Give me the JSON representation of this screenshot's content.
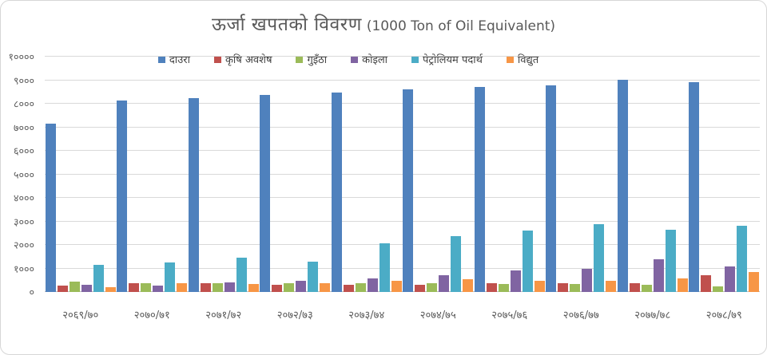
{
  "title": {
    "main": "ऊर्जा खपतको विवरण",
    "sub": "(1000 Ton of Oil Equivalent)"
  },
  "colors": {
    "title_text": "#595959",
    "axis_text": "#595959",
    "legend_text": "#404040",
    "gridline": "#d9d9d9",
    "axis_line": "#bfbfbf",
    "series_blue": "#4F81BD",
    "series_red": "#C0504D",
    "series_green": "#9BBB59",
    "series_purple": "#8064A2",
    "series_teal": "#4BACC6",
    "series_orange": "#F79646"
  },
  "chart_data": {
    "type": "bar",
    "title": "ऊर्जा खपतको विवरण (1000 Ton of Oil Equivalent)",
    "xlabel": "",
    "ylabel": "",
    "ylim": [
      0,
      10000
    ],
    "ytick_step": 1000,
    "grid": "horizontal",
    "legend_position": "top",
    "categories": [
      "२०६९/७०",
      "२०७०/७१",
      "२०७१/७२",
      "२०७२/७३",
      "२०७३/७४",
      "२०७४/७५",
      "२०७५/७६",
      "२०७६/७७",
      "२०७७/७८",
      "२०७८/७९"
    ],
    "yticks": [
      {
        "value": 0,
        "label": "०"
      },
      {
        "value": 1000,
        "label": "१०००"
      },
      {
        "value": 2000,
        "label": "२०००"
      },
      {
        "value": 3000,
        "label": "३०००"
      },
      {
        "value": 4000,
        "label": "४०००"
      },
      {
        "value": 5000,
        "label": "५०००"
      },
      {
        "value": 6000,
        "label": "६०००"
      },
      {
        "value": 7000,
        "label": "७०००"
      },
      {
        "value": 8000,
        "label": "८०००"
      },
      {
        "value": 9000,
        "label": "९०००"
      },
      {
        "value": 10000,
        "label": "१००००"
      }
    ],
    "series": [
      {
        "name": "दाउरा",
        "color": "#4F81BD",
        "values": [
          7150,
          8150,
          8250,
          8370,
          8480,
          8600,
          8700,
          8780,
          9020,
          8900
        ]
      },
      {
        "name": "कृषि अवशेष",
        "color": "#C0504D",
        "values": [
          270,
          360,
          360,
          320,
          320,
          320,
          360,
          370,
          370,
          700
        ]
      },
      {
        "name": "गुइँठा",
        "color": "#9BBB59",
        "values": [
          440,
          390,
          360,
          380,
          360,
          380,
          340,
          340,
          320,
          240
        ]
      },
      {
        "name": "कोइला",
        "color": "#8064A2",
        "values": [
          320,
          280,
          420,
          490,
          580,
          720,
          920,
          1000,
          1400,
          1080
        ]
      },
      {
        "name": "पेट्रोलियम पदार्थ",
        "color": "#4BACC6",
        "values": [
          1150,
          1250,
          1450,
          1280,
          2080,
          2360,
          2610,
          2870,
          2640,
          2810
        ]
      },
      {
        "name": "विद्युत",
        "color": "#F79646",
        "values": [
          190,
          360,
          330,
          360,
          490,
          530,
          480,
          490,
          580,
          860
        ]
      }
    ]
  }
}
